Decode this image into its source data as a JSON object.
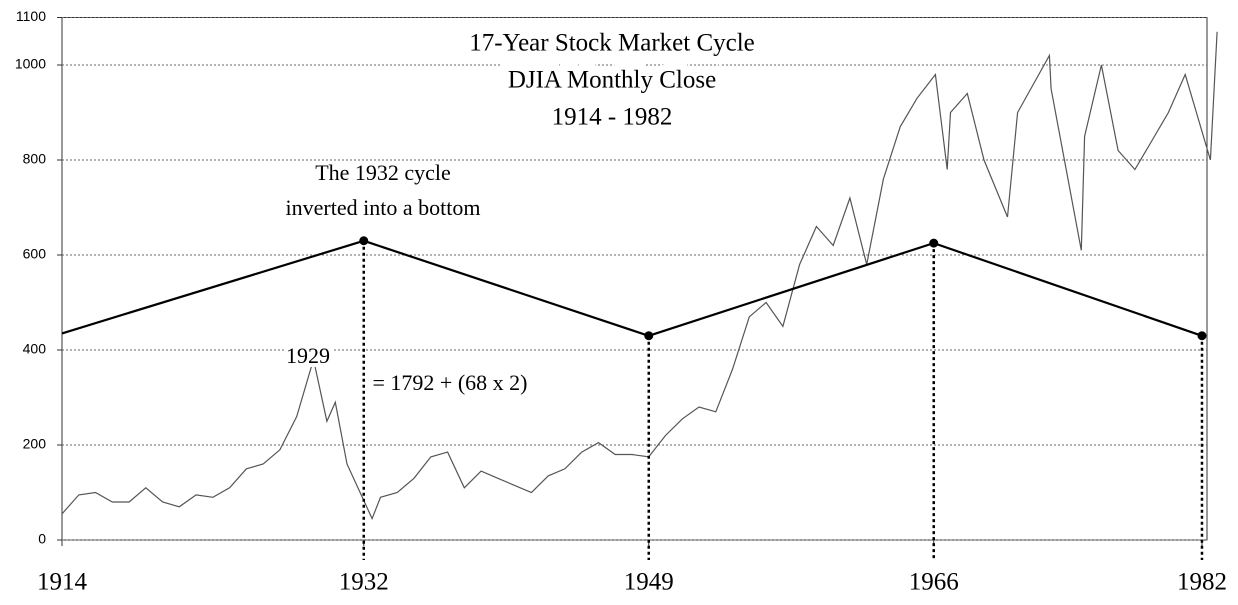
{
  "chart_data": {
    "type": "line",
    "title": [
      "17-Year Stock Market Cycle",
      "DJIA Monthly Close",
      "1914 - 1982"
    ],
    "annotations": [
      "The 1932 cycle",
      "inverted into a bottom",
      "1929",
      "= 1792 + (68 x 2)"
    ],
    "xlim": [
      1914,
      1982.3
    ],
    "xticks": [
      1914,
      1932,
      1949,
      1966,
      1982
    ],
    "ylim": [
      0,
      1100
    ],
    "yticks": [
      0,
      200,
      400,
      600,
      800,
      1000,
      1100
    ],
    "grid": true,
    "series": [
      {
        "color": "#555555",
        "x": [
          1914,
          1915,
          1916,
          1917,
          1918,
          1919,
          1920,
          1921,
          1922,
          1923,
          1924,
          1925,
          1926,
          1927,
          1928,
          1929,
          1929.8,
          1930.3,
          1931,
          1932.5,
          1933,
          1934,
          1935,
          1936,
          1937,
          1938,
          1939,
          1940,
          1941,
          1942,
          1943,
          1944,
          1945,
          1946,
          1947,
          1948,
          1949,
          1950,
          1951,
          1952,
          1953,
          1954,
          1955,
          1956,
          1957,
          1958,
          1959,
          1960,
          1961,
          1962,
          1963,
          1964,
          1965,
          1966.1,
          1966.8,
          1967,
          1968,
          1969,
          1970.4,
          1971,
          1972.9,
          1973,
          1974.8,
          1975,
          1976,
          1977,
          1978,
          1979,
          1980,
          1981,
          1982.5,
          1982.9
        ],
        "values": [
          55,
          95,
          100,
          80,
          80,
          110,
          80,
          70,
          95,
          90,
          110,
          150,
          160,
          190,
          260,
          380,
          250,
          290,
          160,
          45,
          90,
          100,
          130,
          175,
          185,
          110,
          145,
          130,
          115,
          100,
          135,
          150,
          185,
          205,
          180,
          180,
          175,
          220,
          255,
          280,
          270,
          360,
          470,
          500,
          450,
          580,
          660,
          620,
          720,
          580,
          760,
          870,
          930,
          980,
          780,
          900,
          940,
          800,
          680,
          900,
          1020,
          950,
          610,
          850,
          1000,
          820,
          780,
          840,
          900,
          980,
          800,
          1070
        ]
      },
      {
        "color": "#000000",
        "x": [
          1914,
          1932,
          1949,
          1966,
          1982
        ],
        "values": [
          435,
          630,
          430,
          625,
          430
        ]
      }
    ]
  }
}
